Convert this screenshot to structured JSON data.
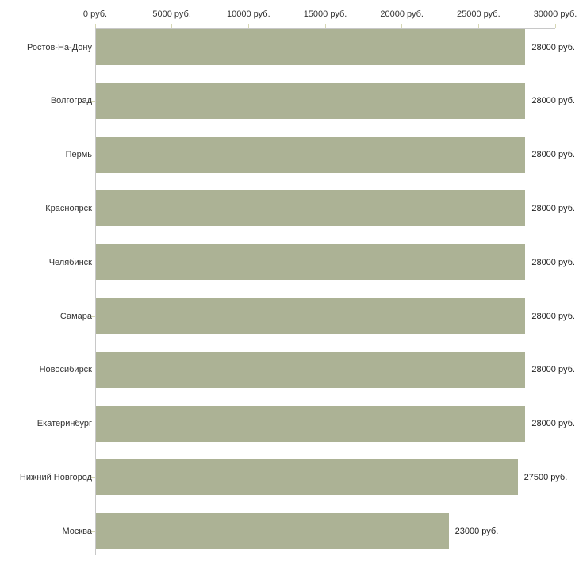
{
  "chart_data": {
    "type": "bar",
    "orientation": "horizontal",
    "title": "",
    "xlabel": "",
    "ylabel": "",
    "categories": [
      "Ростов-На-Дону",
      "Волгоград",
      "Пермь",
      "Красноярск",
      "Челябинск",
      "Самара",
      "Новосибирск",
      "Екатеринбург",
      "Нижний Новгород",
      "Москва"
    ],
    "values": [
      28000,
      28000,
      28000,
      28000,
      28000,
      28000,
      28000,
      28000,
      27500,
      23000
    ],
    "value_labels": [
      "28000 руб.",
      "28000 руб.",
      "28000 руб.",
      "28000 руб.",
      "28000 руб.",
      "28000 руб.",
      "28000 руб.",
      "28000 руб.",
      "27500 руб.",
      "23000 руб."
    ],
    "x_tick_values": [
      0,
      5000,
      10000,
      15000,
      20000,
      25000,
      30000
    ],
    "x_tick_labels": [
      "0 руб.",
      "5000 руб.",
      "10000 руб.",
      "15000 руб.",
      "20000 руб.",
      "25000 руб.",
      "30000 руб."
    ],
    "xlim": [
      0,
      30000
    ],
    "grid": false,
    "legend": false,
    "unit": "руб.",
    "colors": {
      "bar_fill": "#ACB295",
      "axis_line": "#C8C8C8",
      "tick_mark": "#D6D7B4",
      "label_text": "#333333"
    }
  }
}
